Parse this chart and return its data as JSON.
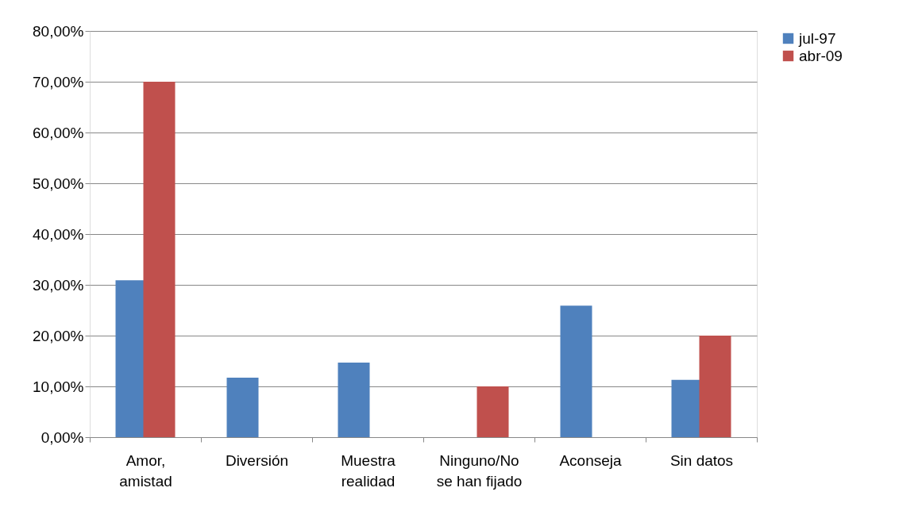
{
  "chart_data": {
    "type": "bar",
    "categories": [
      "Amor,\namistad",
      "Diversión",
      "Muestra\nrealidad",
      "Ninguno/No\nse han fijado",
      "Aconseja",
      "Sin datos"
    ],
    "series": [
      {
        "name": "jul-97",
        "color": "#4f81bd",
        "values": [
          30.9,
          11.7,
          14.7,
          null,
          25.9,
          11.3
        ]
      },
      {
        "name": "abr-09",
        "color": "#c0504d",
        "values": [
          70,
          null,
          null,
          10,
          null,
          20
        ]
      }
    ],
    "ylim": [
      0,
      80
    ],
    "yticks": [
      {
        "value": 0,
        "label": "0,00%"
      },
      {
        "value": 10,
        "label": "10,00%"
      },
      {
        "value": 20,
        "label": "20,00%"
      },
      {
        "value": 30,
        "label": "30,00%"
      },
      {
        "value": 40,
        "label": "40,00%"
      },
      {
        "value": 50,
        "label": "50,00%"
      },
      {
        "value": 60,
        "label": "60,00%"
      },
      {
        "value": 70,
        "label": "70,00%"
      },
      {
        "value": 80,
        "label": "80,00%"
      }
    ],
    "grid": "y",
    "legend": "right"
  }
}
